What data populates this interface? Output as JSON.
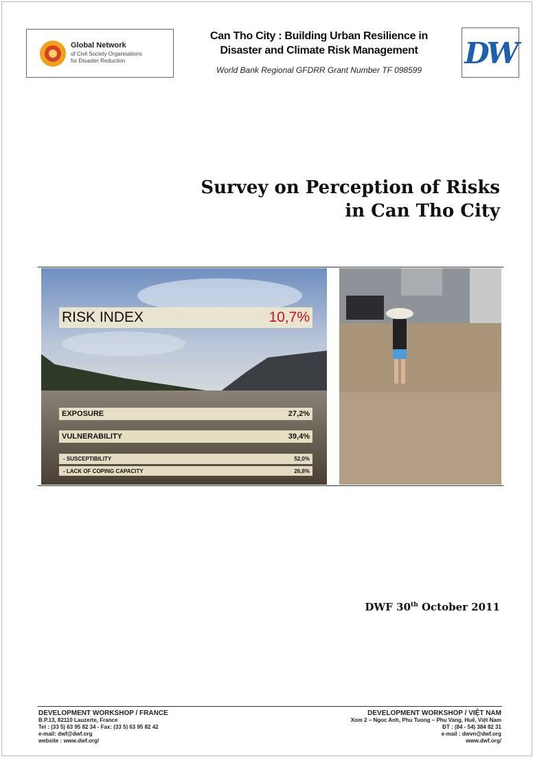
{
  "header": {
    "left_logo": {
      "name": "Global Network",
      "line1": "of Civil Society Organisations",
      "line2": "for Disaster Reduction"
    },
    "title_line1": "Can Tho City : Building Urban Resilience in",
    "title_line2": "Disaster and Climate Risk Management",
    "subtitle": "World Bank Regional GFDRR Grant Number TF 098599",
    "right_logo": "DW"
  },
  "title": {
    "line1": "Survey on Perception of Risks",
    "line2": "in Can Tho City"
  },
  "risk_panel": {
    "index": {
      "label": "RISK INDEX",
      "value": "10,7%"
    },
    "rows": [
      {
        "label": "EXPOSURE",
        "value": "27,2%"
      },
      {
        "label": "VULNERABILITY",
        "value": "39,4%"
      },
      {
        "label": "- SUSCEPTIBILITY",
        "value": "52,0%"
      },
      {
        "label": "- LACK OF COPING CAPACITY",
        "value": "26,8%"
      }
    ]
  },
  "date": {
    "prefix": "DWF 30",
    "sup": "th",
    "rest": " October 2011"
  },
  "footer": {
    "left": [
      "DEVELOPMENT WORKSHOP / FRANCE",
      "B.P.13, 82110 Lauzerte, France",
      "Tel : (33 5) 63 95 82 34 - Fax: (33 5) 63 95 82 42",
      "e-mail: dwf@dwf.org",
      "website : www.dwf.org/"
    ],
    "right": [
      "DEVELOPMENT WORKSHOP / VIỆT NAM",
      "Xom 2 – Ngoc Anh, Phu Tuong – Phu Vang, Huế, Việt Nam",
      "ĐT : (84 - 54) 384 82 31",
      "e-mail : dwvn@dwf.org",
      "www.dwf.org/"
    ]
  }
}
